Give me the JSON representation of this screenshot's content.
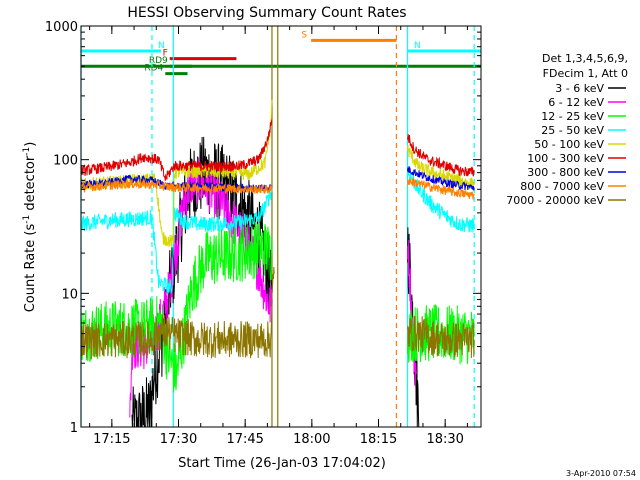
{
  "chart_data": {
    "type": "line",
    "title": "HESSI Observing Summary Count Rates",
    "xlabel": "Start Time (26-Jan-03 17:04:02)",
    "ylabel_pre": "Count Rate (s",
    "ylabel_sup": "-1",
    "ylabel_post": " detector",
    "ylabel_end": ")",
    "yscale": "log",
    "ylim": [
      1,
      1000
    ],
    "xlim_min": [
      4.03,
      94.03
    ],
    "x_unit": "minutes since 17:04:02",
    "x_ticks": [
      {
        "m": 10.97,
        "label": "17:15"
      },
      {
        "m": 25.97,
        "label": "17:30"
      },
      {
        "m": 40.97,
        "label": "17:45"
      },
      {
        "m": 55.97,
        "label": "18:00"
      },
      {
        "m": 70.97,
        "label": "18:15"
      },
      {
        "m": 85.97,
        "label": "18:30"
      }
    ],
    "y_ticks": [
      {
        "v": 1,
        "label": "1"
      },
      {
        "v": 10,
        "label": "10"
      },
      {
        "v": 100,
        "label": "100"
      },
      {
        "v": 1000,
        "label": "1000"
      }
    ],
    "legend_header": [
      "Det 1,3,4,5,6,9,",
      "FDecim 1, Att 0"
    ],
    "legend": [
      {
        "label": "3 - 6 keV",
        "color": "#000000"
      },
      {
        "label": "6 - 12 keV",
        "color": "#ff00ff"
      },
      {
        "label": "12 - 25 keV",
        "color": "#00ff00"
      },
      {
        "label": "25 - 50 keV",
        "color": "#00ffff"
      },
      {
        "label": "50 - 100 keV",
        "color": "#d8d800"
      },
      {
        "label": "100 - 300 keV",
        "color": "#e00000"
      },
      {
        "label": "300 - 800 keV",
        "color": "#0000e0"
      },
      {
        "label": "800 - 7000 keV",
        "color": "#ff8000"
      },
      {
        "label": "7000 - 20000 keV",
        "color": "#8b7500"
      }
    ],
    "flags": [
      {
        "label": "N",
        "color": "#00ffff",
        "y": 650,
        "x0": 4.03,
        "x1": 22.0
      },
      {
        "label": "N",
        "color": "#00ffff",
        "y": 650,
        "x0": 78.5,
        "x1": 94.03
      },
      {
        "label": "",
        "color": "#00ffff",
        "y": 650,
        "x0": 77.5,
        "x1": 78.5
      },
      {
        "label": "F",
        "color": "#e00000",
        "y": 570,
        "x0": 24.0,
        "x1": 39.0
      },
      {
        "label": "S",
        "color": "#ff8000",
        "y": 780,
        "x0": 55.8,
        "x1": 75.0
      },
      {
        "label": "",
        "color": "#008000",
        "y": 500,
        "x0": 4.03,
        "x1": 94.03
      },
      {
        "label": "RD9",
        "color": "#008000",
        "y": 500,
        "x0": 24.0,
        "x1": 29.0
      },
      {
        "label": "RD4",
        "color": "#008000",
        "y": 440,
        "x0": 23.0,
        "x1": 28.0
      }
    ],
    "vlines": [
      {
        "x": 4.03,
        "color": "#00ffff",
        "style": "solid"
      },
      {
        "x": 20.0,
        "color": "#00ffff",
        "style": "dashed"
      },
      {
        "x": 24.8,
        "color": "#00ffff",
        "style": "solid"
      },
      {
        "x": 47.0,
        "color": "#8b7500",
        "style": "solid"
      },
      {
        "x": 48.3,
        "color": "#8b7500",
        "style": "solid"
      },
      {
        "x": 75.0,
        "color": "#ff8000",
        "style": "dashed"
      },
      {
        "x": 77.5,
        "color": "#00ffff",
        "style": "solid"
      },
      {
        "x": 92.5,
        "color": "#00ffff",
        "style": "dashed"
      }
    ],
    "series": [
      {
        "name": "3 - 6 keV",
        "color": "#000000",
        "noise": 0.3,
        "segments": [
          [
            [
              15.5,
              1
            ],
            [
              17.5,
              1.1
            ],
            [
              19.5,
              1.3
            ],
            [
              20.5,
              2.5
            ],
            [
              21.8,
              4
            ],
            [
              23.3,
              6.5
            ],
            [
              24.2,
              12
            ],
            [
              25.5,
              20
            ],
            [
              27,
              40
            ],
            [
              28.5,
              62
            ],
            [
              30,
              72
            ],
            [
              32,
              78
            ],
            [
              34,
              72
            ],
            [
              36,
              65
            ],
            [
              38,
              55
            ],
            [
              40,
              45
            ],
            [
              42,
              35
            ],
            [
              44,
              26
            ],
            [
              45.5,
              18
            ],
            [
              46.5,
              12
            ],
            [
              47,
              9
            ]
          ],
          [
            [
              77.5,
              25
            ],
            [
              78.2,
              12
            ],
            [
              78.9,
              5
            ],
            [
              79.6,
              2
            ],
            [
              80.3,
              1
            ]
          ]
        ]
      },
      {
        "name": "6 - 12 keV",
        "color": "#ff00ff",
        "noise": 0.18,
        "segments": [
          [
            [
              15,
              1
            ],
            [
              15.5,
              4
            ],
            [
              19,
              4
            ],
            [
              20.8,
              5
            ],
            [
              22.5,
              7
            ],
            [
              24,
              11
            ],
            [
              25.5,
              22
            ],
            [
              27,
              45
            ],
            [
              28.5,
              65
            ],
            [
              30,
              70
            ],
            [
              32,
              65
            ],
            [
              34,
              55
            ],
            [
              36,
              45
            ],
            [
              38,
              36
            ],
            [
              40,
              28
            ],
            [
              42,
              22
            ],
            [
              44,
              15
            ],
            [
              45.5,
              10
            ],
            [
              46.5,
              8
            ],
            [
              47,
              8
            ]
          ],
          [
            [
              77.5,
              25
            ],
            [
              78.2,
              10
            ],
            [
              78.8,
              4
            ],
            [
              79.5,
              2.5
            ]
          ]
        ]
      },
      {
        "name": "12 - 25 keV",
        "color": "#00ff00",
        "noise": 0.22,
        "segments": [
          [
            [
              4.03,
              5
            ],
            [
              12,
              5.5
            ],
            [
              18,
              5.5
            ],
            [
              22,
              6
            ],
            [
              23.5,
              3.5
            ],
            [
              25.5,
              2.5
            ],
            [
              27,
              4.5
            ],
            [
              29,
              11
            ],
            [
              32,
              18
            ],
            [
              36,
              19
            ],
            [
              40,
              20
            ],
            [
              45,
              22
            ],
            [
              47,
              20
            ]
          ],
          [
            [
              77.5,
              5
            ],
            [
              85,
              5
            ],
            [
              92.5,
              4.8
            ]
          ]
        ]
      },
      {
        "name": "25 - 50 keV",
        "color": "#00ffff",
        "noise": 0.06,
        "segments": [
          [
            [
              4.03,
              33
            ],
            [
              10,
              35
            ],
            [
              16,
              36
            ],
            [
              20,
              37
            ],
            [
              21.5,
              12
            ],
            [
              24.5,
              11
            ],
            [
              25,
              40
            ],
            [
              27,
              35
            ],
            [
              30,
              33
            ],
            [
              35,
              33
            ],
            [
              40,
              34
            ],
            [
              44,
              37
            ],
            [
              45.5,
              45
            ],
            [
              47,
              60
            ]
          ],
          [
            [
              77.5,
              82
            ],
            [
              80,
              60
            ],
            [
              83,
              46
            ],
            [
              86,
              38
            ],
            [
              89,
              33
            ],
            [
              92.5,
              32
            ]
          ]
        ]
      },
      {
        "name": "50 - 100 keV",
        "color": "#d8d800",
        "noise": 0.05,
        "segments": [
          [
            [
              4.03,
              65
            ],
            [
              12,
              68
            ],
            [
              18,
              70
            ],
            [
              20.8,
              72
            ],
            [
              22.3,
              26
            ],
            [
              24.8,
              24
            ],
            [
              25,
              80
            ],
            [
              30,
              82
            ],
            [
              36,
              80
            ],
            [
              42,
              78
            ],
            [
              45.5,
              95
            ],
            [
              46.7,
              180
            ],
            [
              47,
              280
            ]
          ],
          [
            [
              77.5,
              120
            ],
            [
              80,
              88
            ],
            [
              84,
              78
            ],
            [
              88,
              72
            ],
            [
              92.5,
              65
            ]
          ]
        ]
      },
      {
        "name": "100 - 300 keV",
        "color": "#e00000",
        "noise": 0.04,
        "segments": [
          [
            [
              4.03,
              82
            ],
            [
              10,
              88
            ],
            [
              15,
              95
            ],
            [
              18,
              105
            ],
            [
              21.5,
              100
            ],
            [
              23,
              72
            ],
            [
              25,
              90
            ],
            [
              30,
              90
            ],
            [
              35,
              89
            ],
            [
              40,
              90
            ],
            [
              44,
              100
            ],
            [
              46,
              140
            ],
            [
              47,
              200
            ]
          ],
          [
            [
              77.5,
              150
            ],
            [
              79,
              120
            ],
            [
              82,
              100
            ],
            [
              86,
              90
            ],
            [
              89,
              83
            ],
            [
              92.5,
              80
            ]
          ]
        ]
      },
      {
        "name": "300 - 800 keV",
        "color": "#0000e0",
        "noise": 0.03,
        "segments": [
          [
            [
              4.03,
              65
            ],
            [
              10,
              67
            ],
            [
              15,
              72
            ],
            [
              20,
              70
            ],
            [
              23,
              64
            ],
            [
              26,
              63
            ],
            [
              30,
              64
            ],
            [
              36,
              62
            ],
            [
              42,
              61
            ],
            [
              47,
              62
            ]
          ],
          [
            [
              77.5,
              85
            ],
            [
              80,
              78
            ],
            [
              84,
              70
            ],
            [
              88,
              65
            ],
            [
              92.5,
              62
            ]
          ]
        ]
      },
      {
        "name": "800 - 7000 keV",
        "color": "#ff8000",
        "noise": 0.035,
        "segments": [
          [
            [
              4.03,
              62
            ],
            [
              10,
              64
            ],
            [
              15,
              66
            ],
            [
              20,
              65
            ],
            [
              25,
              62
            ],
            [
              30,
              62
            ],
            [
              36,
              61
            ],
            [
              42,
              60
            ],
            [
              47,
              60
            ]
          ],
          [
            [
              77.5,
              70
            ],
            [
              80,
              66
            ],
            [
              84,
              61
            ],
            [
              88,
              57
            ],
            [
              92.5,
              54
            ]
          ]
        ]
      },
      {
        "name": "7000 - 20000 keV",
        "color": "#8b7500",
        "noise": 0.14,
        "segments": [
          [
            [
              4.03,
              4.5
            ],
            [
              15,
              4.5
            ],
            [
              20,
              4.5
            ],
            [
              22,
              5.2
            ],
            [
              26,
              4.8
            ],
            [
              30,
              4.5
            ],
            [
              36,
              4.5
            ],
            [
              42,
              4.5
            ],
            [
              46.7,
              4.5
            ],
            [
              47,
              9
            ],
            [
              47.5,
              14
            ]
          ],
          [
            [
              77.5,
              5
            ],
            [
              80,
              5
            ],
            [
              85,
              4.5
            ],
            [
              92.5,
              4.5
            ]
          ]
        ]
      }
    ]
  },
  "footer": {
    "timestamp": "3-Apr-2010 07:54"
  }
}
